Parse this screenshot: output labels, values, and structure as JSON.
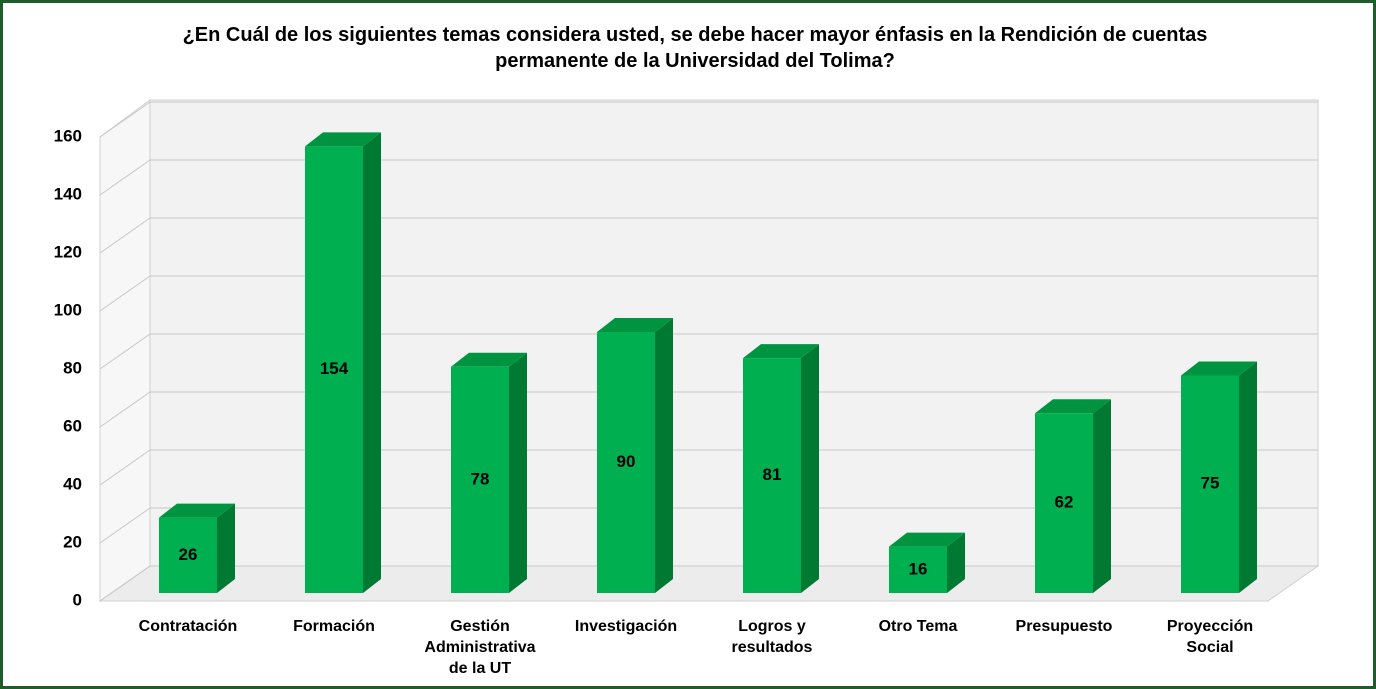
{
  "chart_data": {
    "type": "bar3d",
    "title": "¿En Cuál de los siguientes temas considera usted, se debe hacer mayor énfasis en la Rendición de cuentas permanente de la Universidad del Tolima?",
    "categories": [
      "Contratación",
      "Formación",
      "Gestión Administrativa de la UT",
      "Investigación",
      "Logros y resultados",
      "Otro Tema",
      "Presupuesto",
      "Proyección Social"
    ],
    "values": [
      26,
      154,
      78,
      90,
      81,
      16,
      62,
      75
    ],
    "color": "#00b050",
    "ylim": [
      0,
      160
    ],
    "yticks": [
      0,
      20,
      40,
      60,
      80,
      100,
      120,
      140,
      160
    ],
    "grid": true
  }
}
